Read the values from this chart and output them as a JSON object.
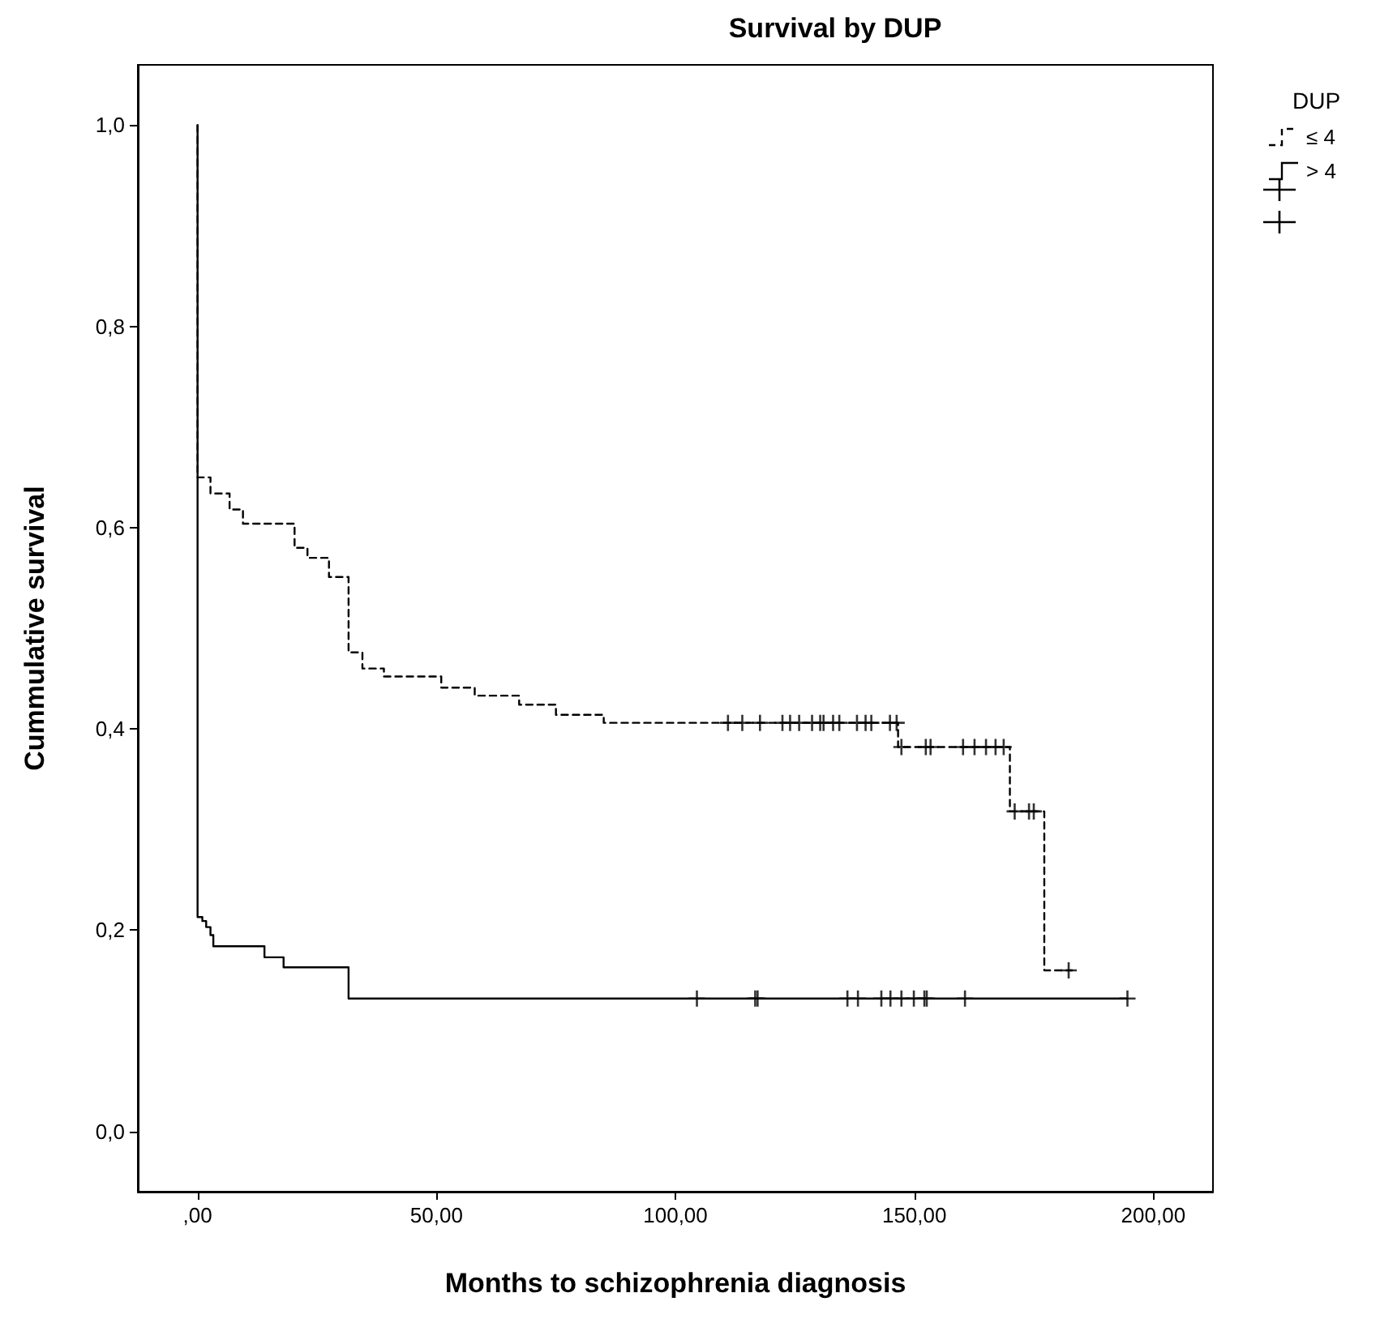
{
  "chart_data": {
    "type": "step",
    "title": "Survival by DUP",
    "xlabel": "Months to schizophrenia diagnosis",
    "ylabel": "Cummulative survival",
    "legend_title": "DUP",
    "legend": "top right",
    "grid": false,
    "xlim": [
      -12.5,
      212.5
    ],
    "ylim": [
      -0.06,
      1.06
    ],
    "xticks": [
      {
        "value": 0,
        "label": ",00"
      },
      {
        "value": 50,
        "label": "50,00"
      },
      {
        "value": 100,
        "label": "100,00"
      },
      {
        "value": 150,
        "label": "150,00"
      },
      {
        "value": 200,
        "label": "200,00"
      }
    ],
    "yticks": [
      {
        "value": 0,
        "label": "0,0"
      },
      {
        "value": 0.2,
        "label": "0,2"
      },
      {
        "value": 0.4,
        "label": "0,4"
      },
      {
        "value": 0.6,
        "label": "0,6"
      },
      {
        "value": 0.8,
        "label": "0,8"
      },
      {
        "value": 1,
        "label": "1,0"
      }
    ],
    "series": [
      {
        "name": "≤ 4",
        "color": "#000000",
        "line_style": "dashed",
        "marker": "none",
        "x": [
          0,
          0,
          2.7,
          6.7,
          9.5,
          20.3,
          23,
          27.5,
          31.6,
          34.5,
          39,
          51,
          58,
          67.3,
          75,
          85,
          146.6,
          170,
          177.2,
          183
        ],
        "values": [
          1,
          0.65,
          0.634,
          0.618,
          0.604,
          0.58,
          0.57,
          0.551,
          0.476,
          0.46,
          0.452,
          0.441,
          0.433,
          0.424,
          0.414,
          0.406,
          0.382,
          0.318,
          0.16,
          0.16
        ]
      },
      {
        "name": "> 4",
        "color": "#000000",
        "line_style": "solid",
        "marker": "none",
        "x": [
          0,
          0,
          1,
          1.8,
          2.7,
          3.3,
          14,
          18,
          31.6,
          194.6
        ],
        "values": [
          1,
          0.213,
          0.209,
          0.203,
          0.195,
          0.184,
          0.173,
          0.163,
          0.132,
          0.132
        ]
      },
      {
        "type": "scatter",
        "color": "#000000",
        "marker": "cross",
        "x": [
          111,
          114,
          117.7,
          122.4,
          124,
          125.9,
          128.6,
          130.3,
          131,
          133,
          134.3,
          138,
          139.8,
          141,
          144.9,
          146.3,
          147.3,
          152.4,
          153.4,
          160.2,
          162.6,
          165,
          167,
          168.7,
          171,
          174,
          175,
          182.3
        ],
        "values": [
          0.406,
          0.406,
          0.406,
          0.406,
          0.406,
          0.406,
          0.406,
          0.406,
          0.406,
          0.406,
          0.406,
          0.406,
          0.406,
          0.406,
          0.406,
          0.406,
          0.382,
          0.382,
          0.382,
          0.382,
          0.382,
          0.382,
          0.382,
          0.382,
          0.318,
          0.318,
          0.318,
          0.16
        ]
      },
      {
        "type": "scatter",
        "color": "#000000",
        "marker": "cross",
        "x": [
          104.5,
          116.7,
          117.2,
          136,
          138.2,
          143.1,
          145,
          147.3,
          149.9,
          152.1,
          152.6,
          160.6,
          194.6
        ],
        "values": [
          0.132,
          0.132,
          0.132,
          0.132,
          0.132,
          0.132,
          0.132,
          0.132,
          0.132,
          0.132,
          0.132,
          0.132,
          0.132
        ]
      }
    ]
  }
}
